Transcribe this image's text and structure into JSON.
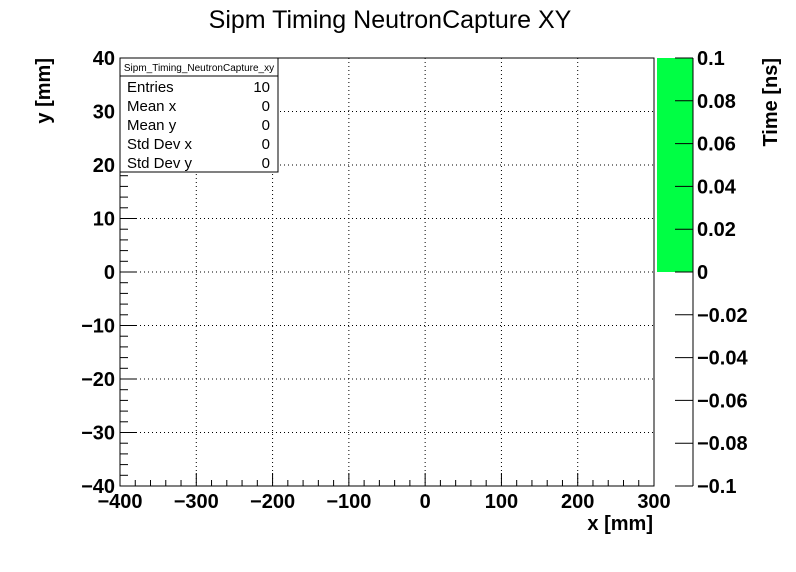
{
  "chart_data": {
    "type": "heatmap",
    "title": "Sipm Timing NeutronCapture XY",
    "xlabel": "x [mm]",
    "ylabel": "y [mm]",
    "zlabel": "Time [ns]",
    "xlim": [
      -400,
      300
    ],
    "ylim": [
      -40,
      40
    ],
    "zlim": [
      -0.1,
      0.1
    ],
    "grid": true,
    "x_ticks": [
      "−400",
      "−300",
      "−200",
      "−100",
      "0",
      "100",
      "200",
      "300"
    ],
    "y_ticks": [
      "−40",
      "−30",
      "−20",
      "−10",
      "0",
      "10",
      "20",
      "30",
      "40"
    ],
    "z_ticks": [
      "−0.1",
      "−0.08",
      "−0.06",
      "−0.04",
      "−0.02",
      "0",
      "0.02",
      "0.04",
      "0.06",
      "0.08",
      "0.1"
    ],
    "palette_fill": {
      "from": 0,
      "to": 0.1,
      "color": "#00ff44"
    },
    "stats_box": {
      "name": "Sipm_Timing_NeutronCapture_xy",
      "rows": [
        {
          "label": "Entries",
          "value": "10"
        },
        {
          "label": "Mean x",
          "value": "0"
        },
        {
          "label": "Mean y",
          "value": "0"
        },
        {
          "label": "Std Dev x",
          "value": "0"
        },
        {
          "label": "Std Dev y",
          "value": "0"
        }
      ]
    }
  }
}
